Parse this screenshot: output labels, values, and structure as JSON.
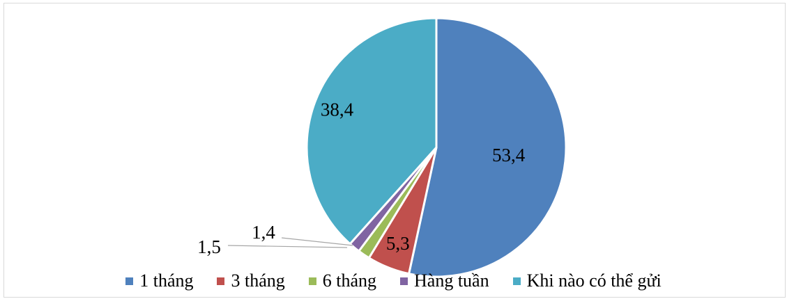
{
  "chart_data": {
    "type": "pie",
    "title": "",
    "categories": [
      "1 tháng",
      "3 tháng",
      "6 tháng",
      "Hàng tuần",
      "Khi nào có thể gửi"
    ],
    "values": [
      53.4,
      5.3,
      1.5,
      1.4,
      38.4
    ],
    "labels": [
      "53,4",
      "5,3",
      "1,5",
      "1,4",
      "38,4"
    ],
    "colors": [
      "#4f81bd",
      "#c0504d",
      "#9bbb59",
      "#8064a2",
      "#4bacc6"
    ],
    "legend_position": "bottom",
    "start": "12 o'clock, clockwise"
  }
}
